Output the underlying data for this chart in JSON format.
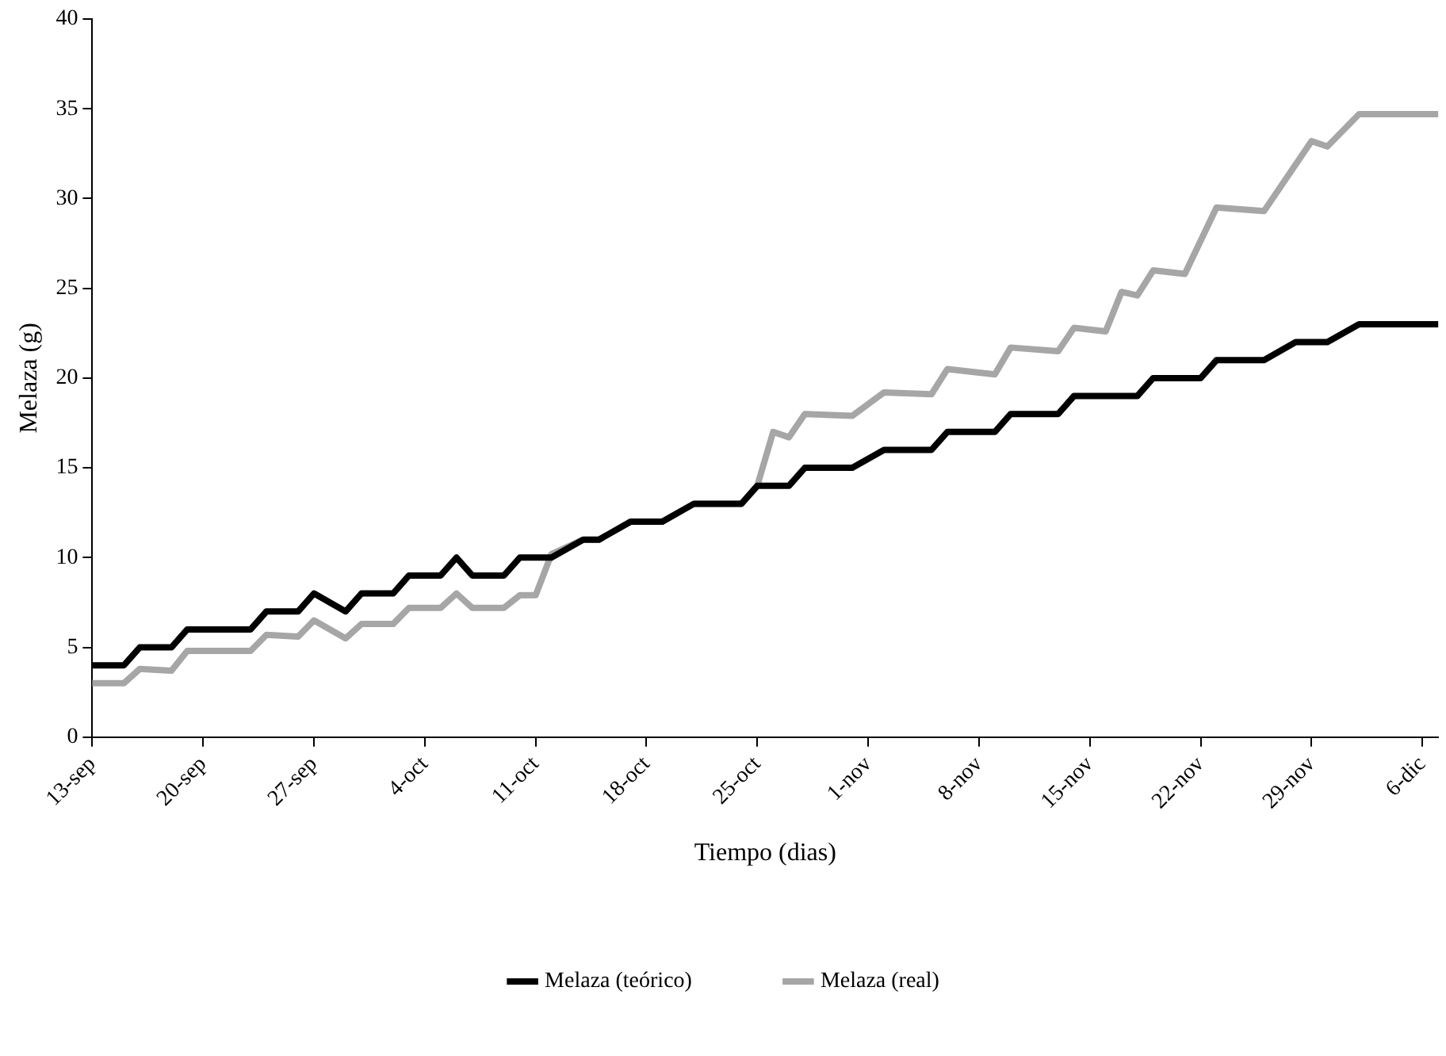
{
  "chart_data": {
    "type": "line",
    "xlabel": "Tiempo (dias)",
    "ylabel": "Melaza (g)",
    "series": [
      {
        "name": "Melaza (teórico)",
        "color": "#000000",
        "x": [
          "--09-13",
          "--09-15",
          "--09-16",
          "--09-18",
          "--09-19",
          "--09-23",
          "--09-24",
          "--09-26",
          "--09-27",
          "--09-29",
          "--09-30",
          "--10-02",
          "--10-03",
          "--10-05",
          "--10-06",
          "--10-07",
          "--10-09",
          "--10-10",
          "--10-12",
          "--10-14",
          "--10-15",
          "--10-17",
          "--10-19",
          "--10-21",
          "--10-24",
          "--10-25",
          "--10-27",
          "--10-28",
          "--10-31",
          "--11-02",
          "--11-05",
          "--11-06",
          "--11-09",
          "--11-10",
          "--11-13",
          "--11-14",
          "--11-18",
          "--11-19",
          "--11-22",
          "--11-23",
          "--11-26",
          "--11-28",
          "--11-30",
          "--12-02",
          "--12-07"
        ],
        "values": [
          4,
          4,
          5,
          5,
          6,
          6,
          7,
          7,
          8,
          7,
          8,
          8,
          9,
          9,
          10,
          9,
          9,
          10,
          10,
          11,
          11,
          12,
          12,
          13,
          13,
          14,
          14,
          15,
          15,
          16,
          16,
          17,
          17,
          18,
          18,
          19,
          19,
          20,
          20,
          21,
          21,
          22,
          22,
          23,
          23
        ]
      },
      {
        "name": "Melaza (real)",
        "color": "#a6a6a6",
        "x": [
          "--09-13",
          "--09-15",
          "--09-16",
          "--09-18",
          "--09-19",
          "--09-23",
          "--09-24",
          "--09-26",
          "--09-27",
          "--09-29",
          "--09-30",
          "--10-02",
          "--10-03",
          "--10-05",
          "--10-06",
          "--10-07",
          "--10-09",
          "--10-10",
          "--10-11",
          "--10-12",
          "--10-14",
          "--10-15",
          "--10-17",
          "--10-19",
          "--10-21",
          "--10-24",
          "--10-25",
          "--10-26",
          "--10-27",
          "--10-28",
          "--10-31",
          "--11-02",
          "--11-05",
          "--11-06",
          "--11-09",
          "--11-10",
          "--11-13",
          "--11-14",
          "--11-16",
          "--11-17",
          "--11-18",
          "--11-19",
          "--11-21",
          "--11-23",
          "--11-26",
          "--11-29",
          "--11-30",
          "--12-02",
          "--12-07"
        ],
        "values": [
          3,
          3,
          3.8,
          3.7,
          4.8,
          4.8,
          5.7,
          5.6,
          6.5,
          5.5,
          6.3,
          6.3,
          7.2,
          7.2,
          8,
          7.2,
          7.2,
          7.9,
          7.9,
          10.2,
          11,
          11,
          12,
          12,
          13,
          13,
          14,
          17,
          16.7,
          18,
          17.9,
          19.2,
          19.1,
          20.5,
          20.2,
          21.7,
          21.5,
          22.8,
          22.6,
          24.8,
          24.6,
          26,
          25.8,
          29.5,
          29.3,
          33.2,
          32.9,
          34.7,
          34.7
        ]
      }
    ],
    "xlim": [
      "--09-13",
      "--12-07"
    ],
    "xticks": [
      {
        "value": "--09-13",
        "label": "13-sep"
      },
      {
        "value": "--09-20",
        "label": "20-sep"
      },
      {
        "value": "--09-27",
        "label": "27-sep"
      },
      {
        "value": "--10-04",
        "label": "4-oct"
      },
      {
        "value": "--10-11",
        "label": "11-oct"
      },
      {
        "value": "--10-18",
        "label": "18-oct"
      },
      {
        "value": "--10-25",
        "label": "25-oct"
      },
      {
        "value": "--11-01",
        "label": "1-nov"
      },
      {
        "value": "--11-08",
        "label": "8-nov"
      },
      {
        "value": "--11-15",
        "label": "15-nov"
      },
      {
        "value": "--11-22",
        "label": "22-nov"
      },
      {
        "value": "--11-29",
        "label": "29-nov"
      },
      {
        "value": "--12-06",
        "label": "6-dic"
      }
    ],
    "ylim": [
      0,
      40
    ],
    "yticks": [
      0,
      5,
      10,
      15,
      20,
      25,
      30,
      35,
      40
    ],
    "grid": false,
    "legend": "bottom",
    "marker": "none",
    "line_style": "solid"
  }
}
